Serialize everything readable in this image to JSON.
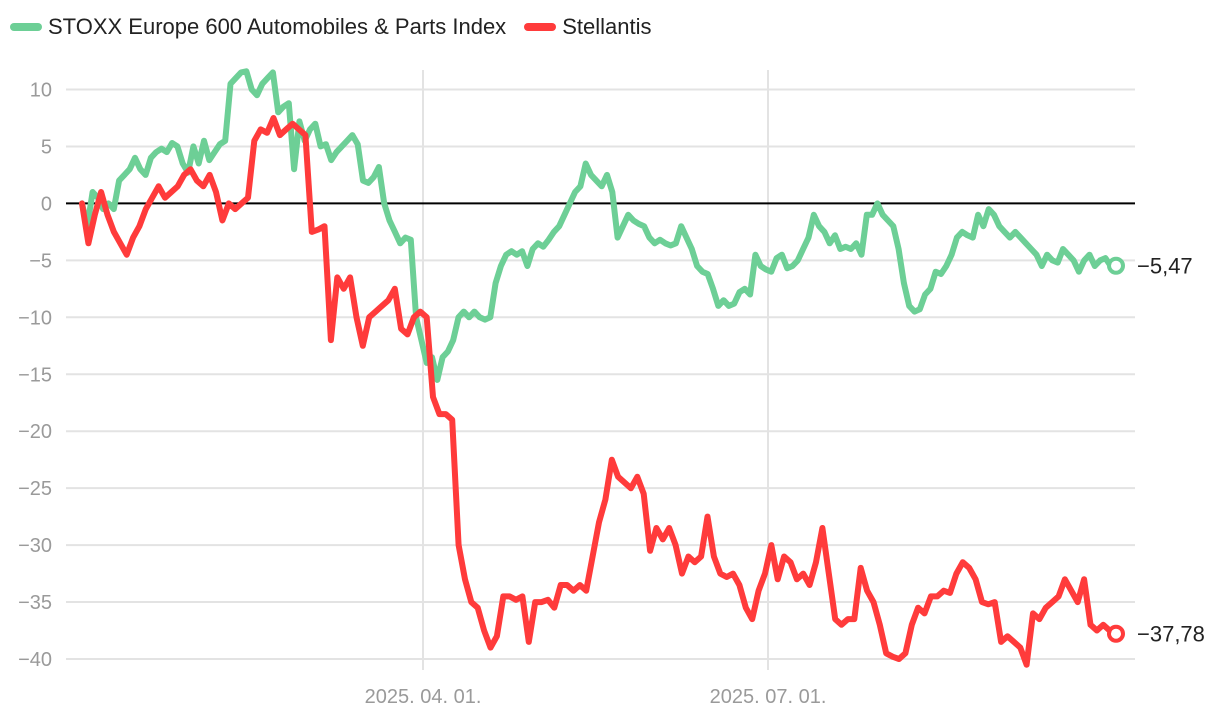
{
  "chart_data": {
    "type": "line",
    "legend_position": "top-left",
    "x_labels": [
      "2025. 04. 01.",
      "2025. 07. 01."
    ],
    "ylim": [
      -41,
      12
    ],
    "yticks": [
      10,
      5,
      0,
      -5,
      -10,
      -15,
      -20,
      -25,
      -30,
      -35,
      -40
    ],
    "zero_line": true,
    "series": [
      {
        "name": "STOXX Europe 600 Automobiles & Parts Index",
        "color": "#6dcf96",
        "end_label": "−5,47",
        "values": [
          0,
          -2,
          1,
          0.5,
          -0.5,
          0,
          -0.5,
          2,
          2.5,
          3,
          4,
          3,
          2.5,
          4,
          4.5,
          4.8,
          4.5,
          5.3,
          5,
          3.5,
          2.7,
          5,
          3.5,
          5.5,
          3.8,
          4.5,
          5.2,
          5.5,
          10.5,
          11,
          11.5,
          11.6,
          10,
          9.5,
          10.5,
          11,
          11.5,
          8,
          8.5,
          8.8,
          3,
          7.2,
          5.5,
          6.5,
          7,
          5,
          5.2,
          3.8,
          4.5,
          5,
          5.5,
          6,
          5.2,
          2,
          1.8,
          2.3,
          3.2,
          0,
          -1.5,
          -2.5,
          -3.5,
          -3,
          -3.2,
          -10,
          -12,
          -14,
          -13.5,
          -15.5,
          -13.5,
          -13,
          -12,
          -10,
          -9.5,
          -10,
          -9.5,
          -10,
          -10.2,
          -10,
          -7,
          -5.5,
          -4.5,
          -4.2,
          -4.5,
          -4.2,
          -5.5,
          -4,
          -3.5,
          -3.8,
          -3.2,
          -2.5,
          -2,
          -1,
          0,
          1,
          1.5,
          3.5,
          2.5,
          2,
          1.5,
          2.5,
          1,
          -3,
          -2,
          -1,
          -1.5,
          -1.8,
          -2,
          -3,
          -3.5,
          -3.2,
          -3.5,
          -3.7,
          -3.5,
          -2,
          -3,
          -4,
          -5.5,
          -6,
          -6.2,
          -7.5,
          -9,
          -8.5,
          -9,
          -8.8,
          -7.8,
          -7.5,
          -8,
          -4.5,
          -5.5,
          -5.8,
          -6,
          -4.8,
          -4.5,
          -5.7,
          -5.5,
          -5,
          -4,
          -3,
          -1,
          -2,
          -2.5,
          -3.5,
          -2.8,
          -4,
          -3.8,
          -4,
          -3.5,
          -4.5,
          -1,
          -1,
          0,
          -1,
          -1.5,
          -2,
          -4,
          -7,
          -9,
          -9.5,
          -9.3,
          -8,
          -7.5,
          -6,
          -6.2,
          -5.5,
          -4.5,
          -3,
          -2.5,
          -2.8,
          -3,
          -1,
          -2,
          -0.5,
          -1,
          -2,
          -2.5,
          -3,
          -2.5,
          -3,
          -3.5,
          -4,
          -4.5,
          -5.5,
          -4.5,
          -5,
          -5.2,
          -4,
          -4.5,
          -5,
          -6,
          -5,
          -4.5,
          -5.5,
          -5,
          -4.8,
          -5.5,
          -5.47
        ]
      },
      {
        "name": "Stellantis",
        "color": "#ff3b3b",
        "end_label": "−37,78",
        "values": [
          0,
          -3.5,
          -1,
          1,
          -1,
          -2.5,
          -3.5,
          -4.5,
          -3,
          -2,
          -0.5,
          0.5,
          1.5,
          0.5,
          1,
          1.5,
          2.5,
          3,
          2,
          1.5,
          2.5,
          1,
          -1.5,
          0,
          -0.5,
          0,
          0.5,
          5.5,
          6.5,
          6.2,
          7.5,
          6,
          6.5,
          7,
          6.5,
          6,
          -2.5,
          -2.3,
          -2,
          -12,
          -6.5,
          -7.5,
          -6.5,
          -10,
          -12.5,
          -10,
          -9.5,
          -9,
          -8.5,
          -7.5,
          -11,
          -11.5,
          -10,
          -9.5,
          -10,
          -17,
          -18.5,
          -18.5,
          -19,
          -30,
          -33,
          -35,
          -35.5,
          -37.5,
          -39,
          -38,
          -34.5,
          -34.5,
          -34.8,
          -34.5,
          -38.5,
          -35,
          -35,
          -34.8,
          -35.5,
          -33.5,
          -33.5,
          -34,
          -33.5,
          -34,
          -31,
          -28,
          -26,
          -22.5,
          -24,
          -24.5,
          -25,
          -24,
          -25.5,
          -30.5,
          -28.5,
          -29.5,
          -28.5,
          -30,
          -32.5,
          -31,
          -31.5,
          -31,
          -27.5,
          -31,
          -32.5,
          -32.8,
          -32.5,
          -33.5,
          -35.5,
          -36.5,
          -34,
          -32.5,
          -30,
          -33,
          -31,
          -31.5,
          -33,
          -32.5,
          -33.5,
          -31.5,
          -28.5,
          -32.5,
          -36.5,
          -37,
          -36.5,
          -36.5,
          -32,
          -34,
          -35,
          -37,
          -39.5,
          -39.8,
          -40,
          -39.5,
          -37,
          -35.5,
          -36,
          -34.5,
          -34.5,
          -34,
          -34.2,
          -32.5,
          -31.5,
          -32,
          -33,
          -35,
          -35.2,
          -35,
          -38.5,
          -38,
          -38.5,
          -39,
          -40.5,
          -36,
          -36.5,
          -35.5,
          -35,
          -34.5,
          -33,
          -34,
          -35,
          -33,
          -37,
          -37.5,
          -37,
          -37.5,
          -37.78
        ]
      }
    ]
  }
}
